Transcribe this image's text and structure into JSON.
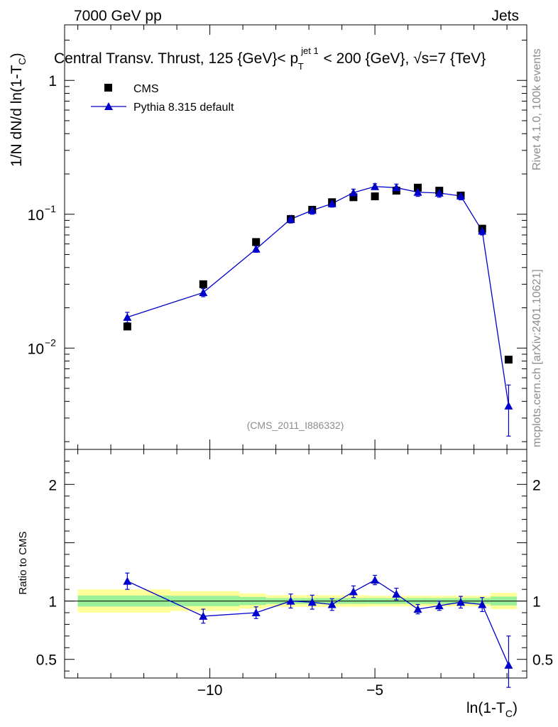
{
  "header": {
    "left": "7000 GeV pp",
    "right": "Jets"
  },
  "side_labels": {
    "rivet": "Rivet 4.1.0,  100k events",
    "mcplots": "mcplots.cern.ch [arXiv:2401.10621]"
  },
  "chart_data": {
    "type": "line",
    "title": "Central Transv. Thrust, 125 {GeV}< p_T^{jet 1} < 200 {GeV}, √s=7 {TeV}",
    "title_parts": {
      "pre": "Central Transv. Thrust, 125 {GeV}< p",
      "sub": "T",
      "sup": "jet 1",
      "post": " < 200 {GeV}, √s=7 {TeV}"
    },
    "watermark": "(CMS_2011_I886332)",
    "xlabel": "ln(1-T_C)",
    "xlabel_parts": {
      "main": "ln(1-T",
      "sub": "C",
      "close": ")"
    },
    "ylabel": "1/N   dN/d ln(1-T_C)",
    "ylabel_parts": {
      "main": "1/N    dN/d ln(1-T",
      "sub": "C",
      "close": ")"
    },
    "ratio_ylabel": "Ratio to CMS",
    "xlim": [
      -14.4,
      -0.4
    ],
    "ylim": [
      0.00175,
      2.6
    ],
    "yscale": "log",
    "ratio_ylim": [
      0.34,
      2.3
    ],
    "x_ticks": [
      -10,
      -5
    ],
    "x_tick_labels": [
      "−10",
      "−5"
    ],
    "y_ticks": [
      {
        "value": 1,
        "base": "1",
        "exp": ""
      },
      {
        "value": 0.1,
        "base": "10",
        "exp": "−1"
      },
      {
        "value": 0.01,
        "base": "10",
        "exp": "−2"
      }
    ],
    "ratio_ticks": [
      {
        "value": 2,
        "label": "2"
      },
      {
        "value": 1,
        "label": "1"
      },
      {
        "value": 0.5,
        "label": "0.5"
      }
    ],
    "legend": [
      {
        "name": "CMS",
        "marker": "square"
      },
      {
        "name": "Pythia 8.315 default",
        "marker": "triangle"
      }
    ],
    "bin_edges": [
      -14.0,
      -11.2,
      -9.1,
      -8.3,
      -7.1,
      -6.8,
      -6.2,
      -5.7,
      -5.2,
      -4.8,
      -4.2,
      -3.6,
      -3.0,
      -2.7,
      -2.4,
      -2.1,
      -1.8,
      -1.5,
      -0.7
    ],
    "band_inner": [
      0.047,
      0.044,
      0.035,
      0.025,
      0.025,
      0.025,
      0.025,
      0.025,
      0.025,
      0.025,
      0.025,
      0.025,
      0.025,
      0.025,
      0.025,
      0.025,
      0.025,
      0.038
    ],
    "band_outer": [
      0.1,
      0.085,
      0.065,
      0.05,
      0.05,
      0.05,
      0.05,
      0.05,
      0.045,
      0.045,
      0.045,
      0.045,
      0.045,
      0.045,
      0.045,
      0.045,
      0.045,
      0.07
    ],
    "band_colors": {
      "outer": "#ffff99",
      "inner": "#99f099"
    },
    "series": [
      {
        "name": "CMS",
        "color": "#000000",
        "x": [
          -12.5,
          -10.2,
          -8.6,
          -7.55,
          -6.9,
          -6.3,
          -5.65,
          -5.0,
          -4.35,
          -3.7,
          -3.05,
          -2.4,
          -1.75,
          -0.95
        ],
        "values": [
          0.0145,
          0.03,
          0.062,
          0.092,
          0.108,
          0.123,
          0.134,
          0.136,
          0.15,
          0.158,
          0.15,
          0.138,
          0.078,
          0.0082
        ]
      },
      {
        "name": "Pythia 8.315 default",
        "color": "#0000cc",
        "x": [
          -12.5,
          -10.2,
          -8.6,
          -7.55,
          -6.9,
          -6.3,
          -5.65,
          -5.0,
          -4.35,
          -3.7,
          -3.05,
          -2.4,
          -1.75,
          -0.95
        ],
        "values": [
          0.017,
          0.026,
          0.055,
          0.092,
          0.107,
          0.12,
          0.145,
          0.161,
          0.158,
          0.146,
          0.144,
          0.137,
          0.075,
          0.0037
        ],
        "yerr_low": [
          0.0015,
          0.0018,
          0.003,
          0.006,
          0.007,
          0.007,
          0.009,
          0.008,
          0.01,
          0.01,
          0.01,
          0.009,
          0.005,
          0.0015
        ],
        "yerr_high": [
          0.0015,
          0.0018,
          0.003,
          0.006,
          0.007,
          0.007,
          0.009,
          0.008,
          0.01,
          0.01,
          0.01,
          0.009,
          0.005,
          0.0016
        ],
        "ratio": [
          1.17,
          0.87,
          0.9,
          1.0,
          0.99,
          0.97,
          1.08,
          1.18,
          1.06,
          0.93,
          0.96,
          0.99,
          0.97,
          0.45
        ],
        "ratio_err_low": [
          0.07,
          0.06,
          0.05,
          0.06,
          0.06,
          0.05,
          0.05,
          0.04,
          0.05,
          0.04,
          0.04,
          0.05,
          0.06,
          0.19
        ],
        "ratio_err_high": [
          0.07,
          0.06,
          0.05,
          0.06,
          0.06,
          0.05,
          0.05,
          0.04,
          0.05,
          0.04,
          0.04,
          0.05,
          0.06,
          0.25
        ]
      }
    ]
  }
}
